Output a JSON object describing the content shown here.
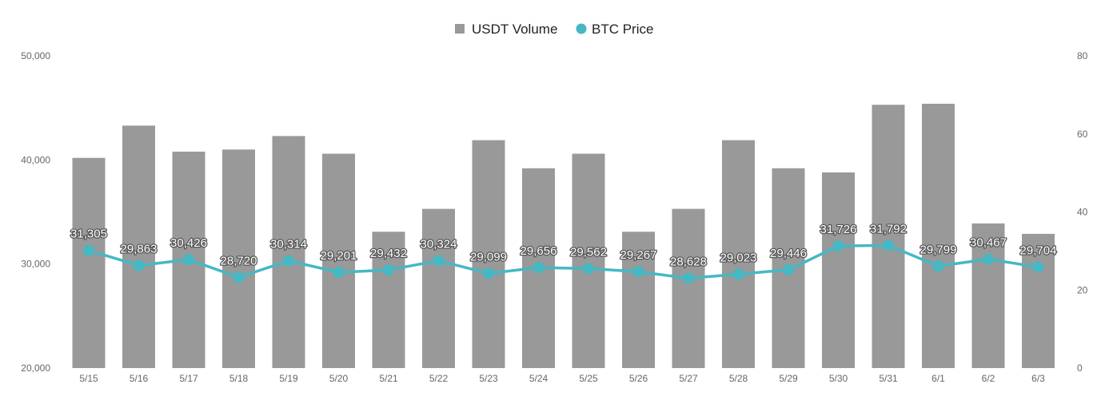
{
  "chart_data": {
    "type": "bar",
    "categories": [
      "5/15",
      "5/16",
      "5/17",
      "5/18",
      "5/19",
      "5/20",
      "5/21",
      "5/22",
      "5/23",
      "5/24",
      "5/25",
      "5/26",
      "5/27",
      "5/28",
      "5/29",
      "5/30",
      "5/31",
      "6/1",
      "6/2",
      "6/3"
    ],
    "series": [
      {
        "name": "USDT Volume",
        "type": "bar",
        "axis": "left",
        "color": "#999999",
        "values": [
          40200,
          43300,
          40800,
          41000,
          42300,
          40600,
          33100,
          35300,
          41900,
          39200,
          40600,
          33100,
          35300,
          41900,
          39200,
          38800,
          45300,
          45400,
          33900,
          32900
        ]
      },
      {
        "name": "BTC Price",
        "type": "line",
        "axis": "right",
        "color": "#45b8c4",
        "values": [
          31305,
          29863,
          30426,
          28720,
          30314,
          29201,
          29432,
          30324,
          29099,
          29656,
          29562,
          29267,
          28628,
          29023,
          29446,
          31726,
          31792,
          29799,
          30467,
          29704
        ],
        "labels": [
          "31,305",
          "29,863",
          "30,426",
          "28,720",
          "30,314",
          "29,201",
          "29,432",
          "30,324",
          "29,099",
          "29,656",
          "29,562",
          "29,267",
          "28,628",
          "29,023",
          "29,446",
          "31,726",
          "31,792",
          "29,799",
          "30,467",
          "29,704"
        ]
      }
    ],
    "y_left": {
      "ylim": [
        20000,
        50000
      ],
      "ticks": [
        "20,000",
        "30,000",
        "40,000",
        "50,000"
      ]
    },
    "y_right": {
      "ylim": [
        0,
        80
      ],
      "ticks": [
        "0",
        "20",
        "40",
        "60",
        "80"
      ]
    },
    "legend": {
      "position": "top-center",
      "items": [
        "USDT Volume",
        "BTC Price"
      ]
    },
    "grid": false
  }
}
